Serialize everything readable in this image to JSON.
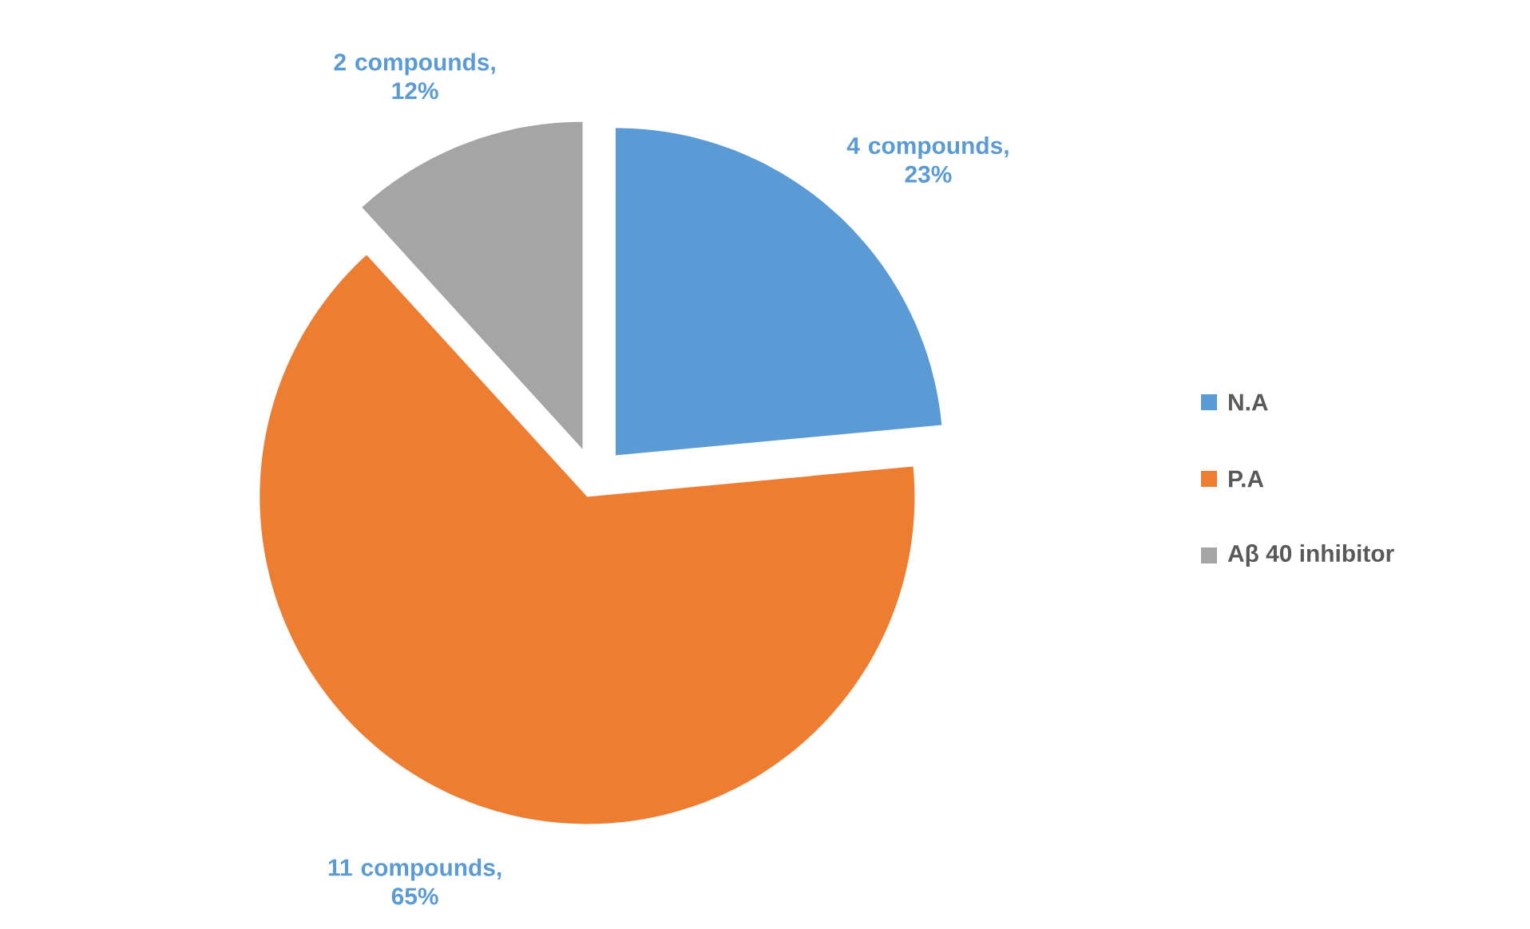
{
  "chart_data": {
    "type": "pie",
    "categories": [
      "N.A",
      "P.A",
      "Aβ 40 inhibitor"
    ],
    "values": [
      4,
      11,
      2
    ],
    "colors": [
      "#5b9bd5",
      "#ed7d31",
      "#a5a5a5"
    ],
    "value_labels": [
      "4 compounds, 23%",
      "11 compounds, 65%",
      "2 compounds, 12%"
    ],
    "legend": "right"
  }
}
